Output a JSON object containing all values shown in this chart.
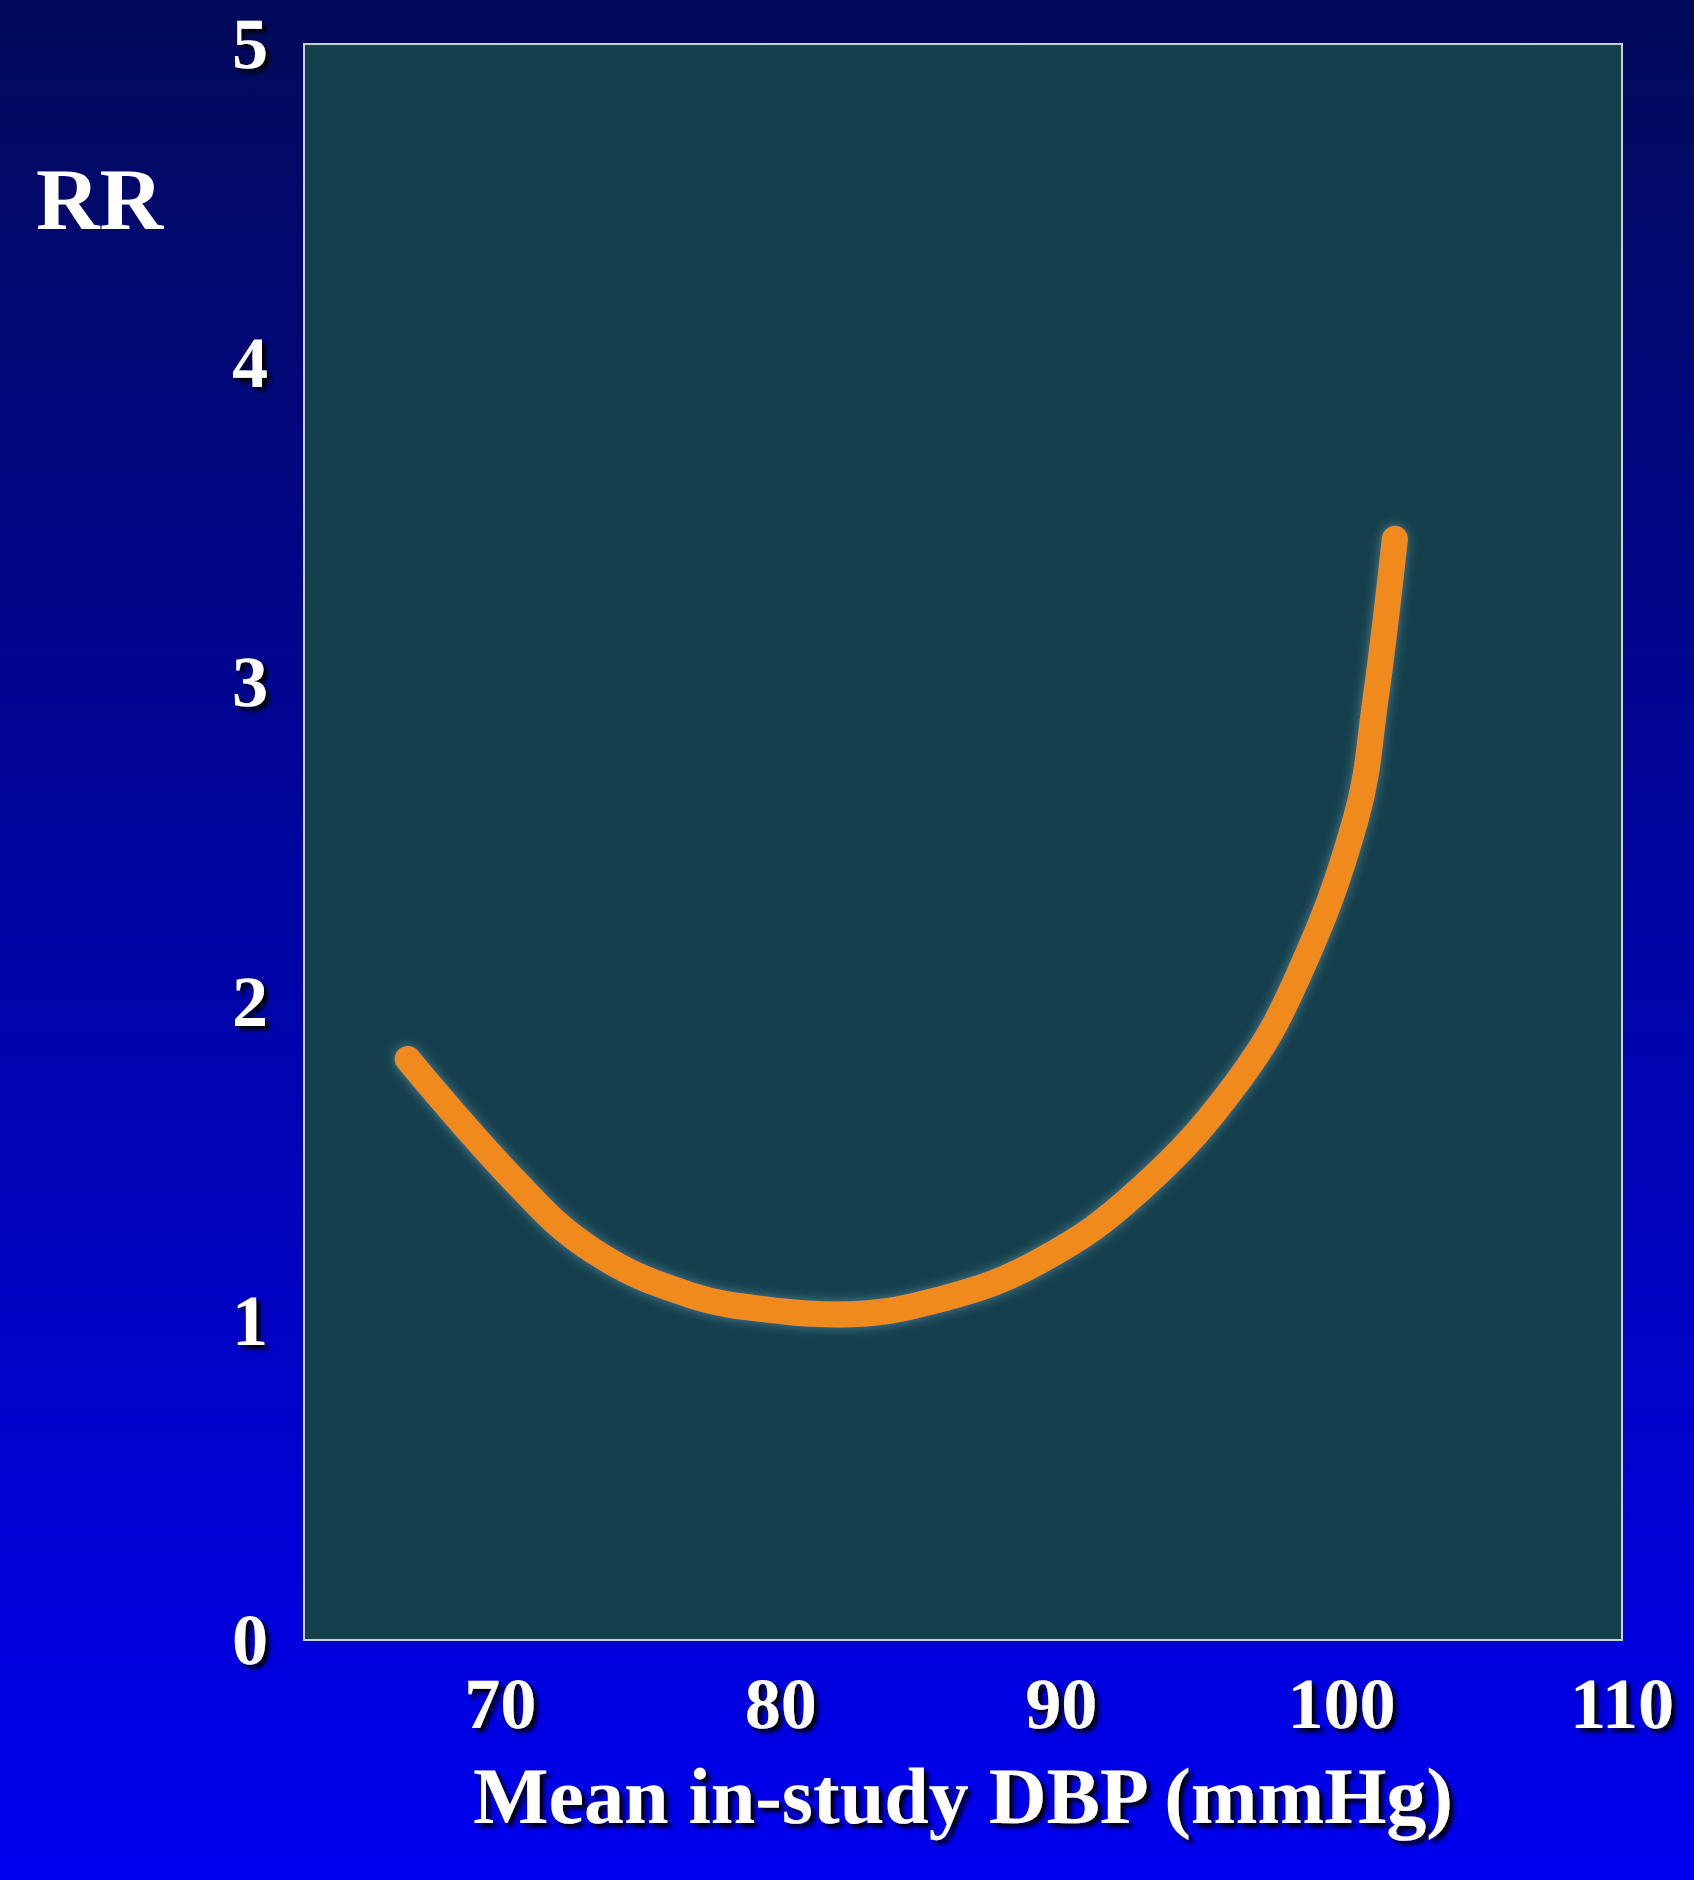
{
  "chart_data": {
    "type": "line",
    "xlabel": "Mean in-study DBP (mmHg)",
    "ylabel": "RR",
    "series": [
      {
        "color": "#f08a1c",
        "x": [
          66.7,
          70.5,
          73.3,
          76.8,
          80.0,
          82.0,
          85.8,
          89.3,
          92.8,
          96.3,
          98.4,
          100.5,
          101.2,
          101.9
        ],
        "values": [
          1.82,
          1.44,
          1.22,
          1.08,
          1.03,
          1.02,
          1.07,
          1.19,
          1.41,
          1.75,
          2.07,
          2.57,
          2.94,
          3.45
        ]
      }
    ],
    "xlim": [
      63,
      110
    ],
    "xticks": [
      70,
      80,
      90,
      100,
      110
    ],
    "ylim": [
      0,
      5
    ],
    "yticks": [
      0,
      1,
      2,
      3,
      4,
      5
    ],
    "grid": false,
    "line_style": "solid"
  }
}
